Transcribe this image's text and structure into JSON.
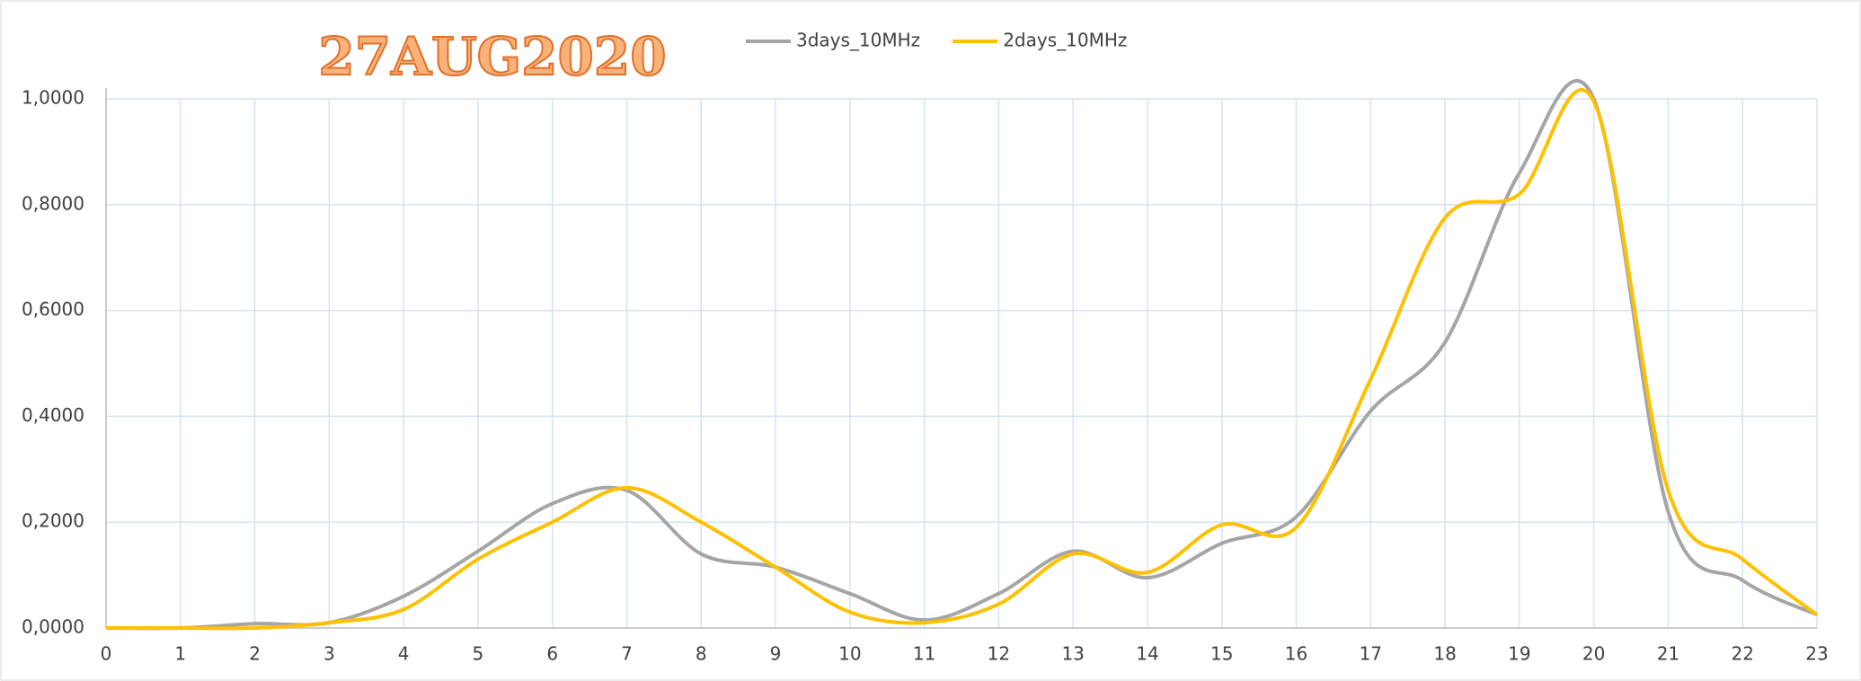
{
  "chart_data": {
    "type": "line",
    "title": "27AUG2020",
    "x": [
      0,
      1,
      2,
      3,
      4,
      5,
      6,
      7,
      8,
      9,
      10,
      11,
      12,
      13,
      14,
      15,
      16,
      17,
      18,
      19,
      20,
      21,
      22,
      23
    ],
    "series": [
      {
        "name": "3days_10MHz",
        "color": "#a5a5a5",
        "values": [
          0,
          0,
          0.008,
          0.01,
          0.06,
          0.145,
          0.235,
          0.26,
          0.14,
          0.115,
          0.065,
          0.015,
          0.065,
          0.145,
          0.095,
          0.16,
          0.21,
          0.41,
          0.54,
          0.86,
          1.0,
          0.22,
          0.09,
          0.025
        ]
      },
      {
        "name": "2days_10MHz",
        "color": "#ffc000",
        "values": [
          0,
          0,
          0,
          0.01,
          0.035,
          0.13,
          0.2,
          0.265,
          0.2,
          0.115,
          0.03,
          0.01,
          0.045,
          0.14,
          0.105,
          0.195,
          0.19,
          0.47,
          0.775,
          0.82,
          0.995,
          0.26,
          0.13,
          0.025
        ]
      }
    ],
    "xlim": [
      0,
      23
    ],
    "xticks": [
      0,
      1,
      2,
      3,
      4,
      5,
      6,
      7,
      8,
      9,
      10,
      11,
      12,
      13,
      14,
      15,
      16,
      17,
      18,
      19,
      20,
      21,
      22,
      23
    ],
    "ylim": [
      0,
      1
    ],
    "yticks": [
      {
        "value": 0,
        "label": "0,0000"
      },
      {
        "value": 0.2,
        "label": "0,2000"
      },
      {
        "value": 0.4,
        "label": "0,4000"
      },
      {
        "value": 0.6,
        "label": "0,6000"
      },
      {
        "value": 0.8,
        "label": "0,8000"
      },
      {
        "value": 1,
        "label": "1,0000"
      }
    ],
    "grid": true,
    "smooth": true,
    "legend": "top"
  }
}
